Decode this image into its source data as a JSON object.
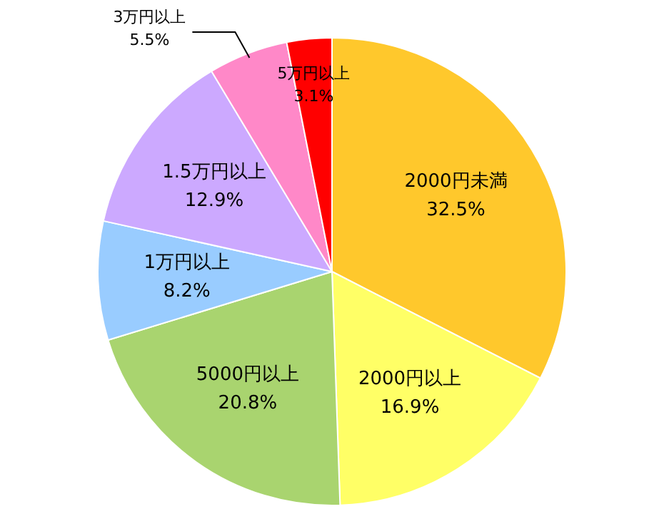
{
  "chart_data": {
    "type": "pie",
    "categories": [
      "2000円未満",
      "2000円以上",
      "5000円以上",
      "1万円以上",
      "1.5万円以上",
      "3万円以上",
      "5万円以上"
    ],
    "values": [
      32.5,
      16.9,
      20.8,
      8.2,
      12.9,
      5.5,
      3.1
    ],
    "value_labels": [
      "32.5%",
      "16.9%",
      "20.8%",
      "8.2%",
      "12.9%",
      "5.5%",
      "3.1%"
    ],
    "colors": [
      "#ffc82c",
      "#ffff66",
      "#a9d46f",
      "#99ccff",
      "#cca9ff",
      "#ff88c8",
      "#ff0000"
    ],
    "legend": false
  }
}
